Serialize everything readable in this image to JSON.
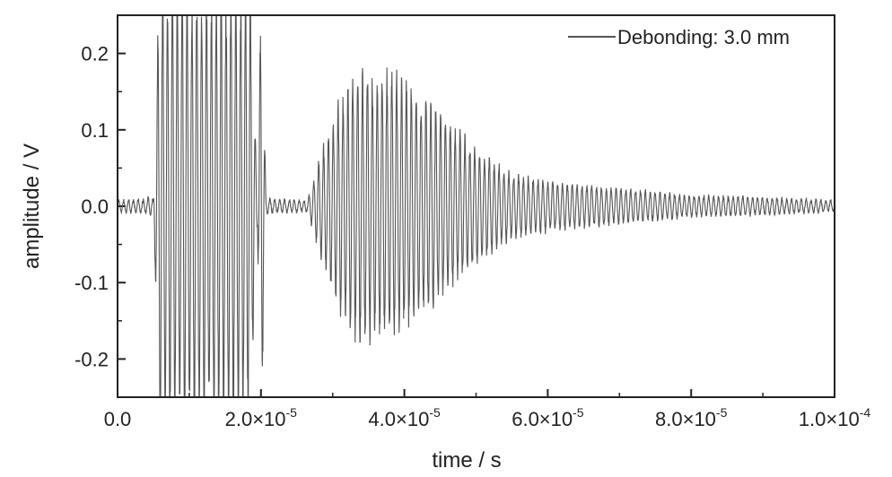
{
  "chart_data": {
    "type": "line",
    "title": "",
    "xlabel": "time / s",
    "ylabel": "amplitude / V",
    "xlim": [
      0,
      0.0001
    ],
    "ylim": [
      -0.25,
      0.25
    ],
    "grid": false,
    "legend_position": "top-right",
    "x_ticks": [
      {
        "value": 0,
        "mantissa": "0.0",
        "exponent": ""
      },
      {
        "value": 2e-05,
        "mantissa": "2.0×10",
        "exponent": "-5"
      },
      {
        "value": 4e-05,
        "mantissa": "4.0×10",
        "exponent": "-5"
      },
      {
        "value": 6e-05,
        "mantissa": "6.0×10",
        "exponent": "-5"
      },
      {
        "value": 8e-05,
        "mantissa": "8.0×10",
        "exponent": "-5"
      },
      {
        "value": 0.0001,
        "mantissa": "1.0×10",
        "exponent": "-4"
      }
    ],
    "y_ticks": [
      {
        "value": 0.2,
        "label": "0.2"
      },
      {
        "value": 0.1,
        "label": "0.1"
      },
      {
        "value": 0.0,
        "label": "0.0"
      },
      {
        "value": -0.1,
        "label": "-0.1"
      },
      {
        "value": -0.2,
        "label": "-0.2"
      }
    ],
    "series": [
      {
        "name": "Debonding: 3.0 mm",
        "color": "#555555",
        "envelope": [
          {
            "t": 0.0,
            "a": 0.008
          },
          {
            "t": 4e-06,
            "a": 0.01
          },
          {
            "t": 4.5e-06,
            "a": 0.015
          },
          {
            "t": 5e-06,
            "a": 0.008
          },
          {
            "t": 5.8e-06,
            "a": 0.3
          },
          {
            "t": 1.8e-05,
            "a": 0.3
          },
          {
            "t": 1.85e-05,
            "a": 0.3
          },
          {
            "t": 1.95e-05,
            "a": 0.03
          },
          {
            "t": 2e-05,
            "a": 0.3
          },
          {
            "t": 2.03e-05,
            "a": 0.2
          },
          {
            "t": 2.07e-05,
            "a": 0.01
          },
          {
            "t": 2.65e-05,
            "a": 0.008
          },
          {
            "t": 2.8e-05,
            "a": 0.06
          },
          {
            "t": 3e-05,
            "a": 0.12
          },
          {
            "t": 3.2e-05,
            "a": 0.17
          },
          {
            "t": 3.4e-05,
            "a": 0.19
          },
          {
            "t": 3.6e-05,
            "a": 0.18
          },
          {
            "t": 3.8e-05,
            "a": 0.19
          },
          {
            "t": 4e-05,
            "a": 0.17
          },
          {
            "t": 4.3e-05,
            "a": 0.15
          },
          {
            "t": 4.6e-05,
            "a": 0.12
          },
          {
            "t": 5e-05,
            "a": 0.08
          },
          {
            "t": 5.5e-05,
            "a": 0.045
          },
          {
            "t": 6e-05,
            "a": 0.035
          },
          {
            "t": 7e-05,
            "a": 0.025
          },
          {
            "t": 8e-05,
            "a": 0.015
          },
          {
            "t": 9e-05,
            "a": 0.012
          },
          {
            "t": 0.0001,
            "a": 0.008
          }
        ]
      }
    ]
  }
}
